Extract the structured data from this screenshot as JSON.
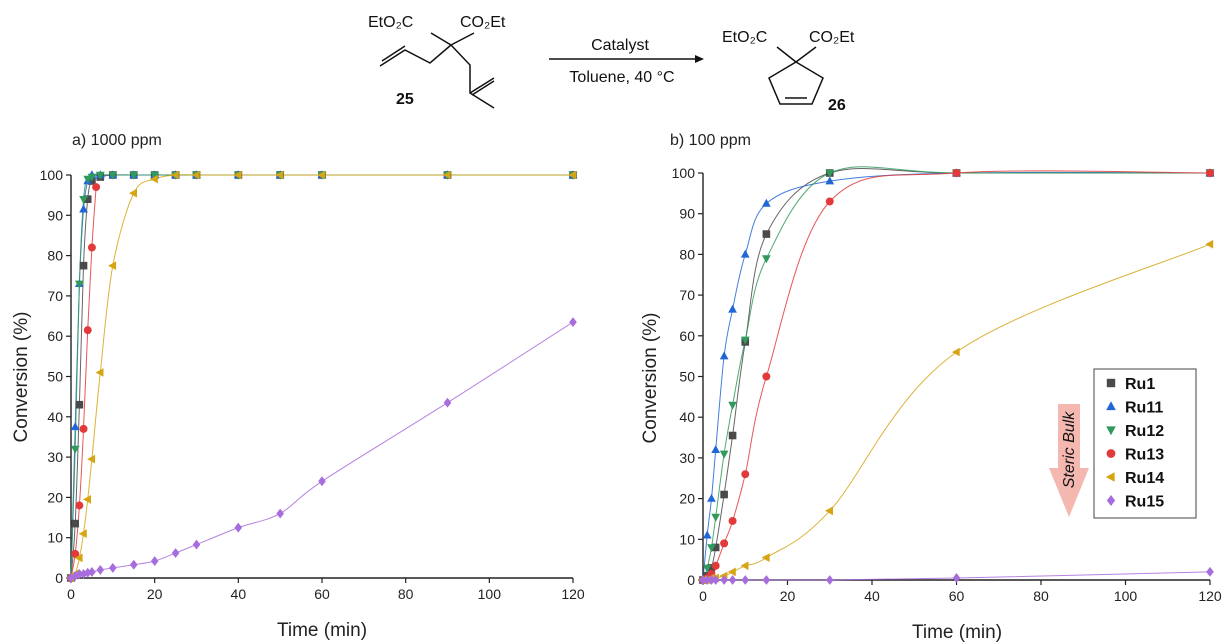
{
  "scheme": {
    "reactant_left_group": "EtO₂C",
    "reactant_right_group": "CO₂Et",
    "reactant_label": "25",
    "arrow_top": "Catalyst",
    "arrow_bottom": "Toluene, 40 °C",
    "product_left_group": "EtO₂C",
    "product_right_group": "CO₂Et",
    "product_label": "26"
  },
  "legend": {
    "arrow_text": "Steric Bulk",
    "arrow_color": "#f4b8b0"
  },
  "chart_data": [
    {
      "type": "scatter",
      "title": "a) 1000 ppm",
      "xlabel": "Time (min)",
      "ylabel": "Conversion (%)",
      "xlim": [
        0,
        120
      ],
      "ylim": [
        0,
        100
      ],
      "xticks": [
        0,
        20,
        40,
        60,
        80,
        100,
        120
      ],
      "yticks": [
        0,
        10,
        20,
        30,
        40,
        50,
        60,
        70,
        80,
        90,
        100
      ],
      "fit_lines": true,
      "series": [
        {
          "name": "Ru1",
          "marker": "square",
          "color": "#4a4a4a",
          "x": [
            0,
            1,
            2,
            3,
            4,
            5,
            7,
            10,
            15,
            20,
            25,
            30,
            40,
            50,
            60,
            90,
            120
          ],
          "y": [
            0,
            13.5,
            43,
            77.5,
            94,
            98.5,
            99.5,
            100,
            100,
            100,
            100,
            100,
            100,
            100,
            100,
            100,
            100
          ]
        },
        {
          "name": "Ru11",
          "marker": "triangle-up",
          "color": "#2166d6",
          "x": [
            0,
            1,
            2,
            3,
            4,
            5,
            7,
            10,
            15,
            20,
            25,
            30,
            40,
            50,
            60,
            90,
            120
          ],
          "y": [
            0,
            37.5,
            73,
            91.5,
            98.5,
            100,
            100,
            100,
            100,
            100,
            100,
            100,
            100,
            100,
            100,
            100,
            100
          ]
        },
        {
          "name": "Ru12",
          "marker": "triangle-down",
          "color": "#2f9a5c",
          "x": [
            0,
            1,
            2,
            3,
            4,
            5,
            7,
            10,
            15,
            20,
            25,
            30,
            40,
            50,
            60,
            90,
            120
          ],
          "y": [
            0,
            32,
            73,
            94,
            99,
            99.5,
            100,
            100,
            100,
            100,
            100,
            100,
            100,
            100,
            100,
            100,
            100
          ]
        },
        {
          "name": "Ru13",
          "marker": "circle",
          "color": "#e23a3a",
          "x": [
            0,
            1,
            2,
            3,
            4,
            5,
            6
          ],
          "y": [
            0,
            6,
            18,
            37,
            61.5,
            82,
            97
          ]
        },
        {
          "name": "Ru14",
          "marker": "triangle-left",
          "color": "#d6a514",
          "x": [
            0,
            1,
            2,
            3,
            4,
            5,
            7,
            10,
            15,
            20,
            25,
            30,
            40,
            50,
            60,
            90,
            120
          ],
          "y": [
            0,
            1,
            5,
            11,
            19.5,
            29.5,
            51,
            77.5,
            95.5,
            99,
            100,
            100,
            100,
            100,
            100,
            100,
            100
          ]
        },
        {
          "name": "Ru15",
          "marker": "diamond",
          "color": "#a86ddc",
          "x": [
            0,
            1,
            2,
            3,
            4,
            5,
            7,
            10,
            15,
            20,
            25,
            30,
            40,
            50,
            60,
            90,
            120
          ],
          "y": [
            0,
            0.5,
            1,
            1,
            1.3,
            1.5,
            2,
            2.5,
            3.3,
            4.2,
            6.2,
            8.3,
            12.5,
            16,
            24,
            43.5,
            63.5
          ]
        }
      ]
    },
    {
      "type": "scatter",
      "title": "b) 100 ppm",
      "xlabel": "Time (min)",
      "ylabel": "Conversion (%)",
      "xlim": [
        0,
        120
      ],
      "ylim": [
        0,
        100
      ],
      "xticks": [
        0,
        20,
        40,
        60,
        80,
        100,
        120
      ],
      "yticks": [
        0,
        10,
        20,
        30,
        40,
        50,
        60,
        70,
        80,
        90,
        100
      ],
      "fit_lines": true,
      "legend_position": "right",
      "series": [
        {
          "name": "Ru1",
          "marker": "square",
          "color": "#4a4a4a",
          "x": [
            0,
            1,
            2,
            3,
            5,
            7,
            10,
            15,
            30,
            60,
            120
          ],
          "y": [
            0,
            1,
            3,
            8,
            21,
            35.5,
            58.5,
            85,
            100,
            100,
            100
          ]
        },
        {
          "name": "Ru11",
          "marker": "triangle-up",
          "color": "#2166d6",
          "x": [
            0,
            1,
            2,
            3,
            5,
            7,
            10,
            15,
            30,
            60,
            120
          ],
          "y": [
            0,
            11,
            20,
            32,
            55,
            66.5,
            80,
            92.5,
            98,
            100,
            100
          ]
        },
        {
          "name": "Ru12",
          "marker": "triangle-down",
          "color": "#2f9a5c",
          "x": [
            0,
            1,
            2,
            3,
            5,
            7,
            10,
            15,
            30,
            60,
            120
          ],
          "y": [
            0,
            3,
            8,
            15.5,
            31,
            43,
            59,
            79,
            100,
            100,
            100
          ]
        },
        {
          "name": "Ru13",
          "marker": "circle",
          "color": "#e23a3a",
          "x": [
            0,
            1,
            2,
            3,
            5,
            7,
            10,
            15,
            30,
            60,
            120
          ],
          "y": [
            0,
            0.5,
            1.5,
            3.5,
            9,
            14.5,
            26,
            50,
            93,
            100,
            100
          ]
        },
        {
          "name": "Ru14",
          "marker": "triangle-left",
          "color": "#d6a514",
          "x": [
            0,
            1,
            2,
            3,
            5,
            7,
            10,
            15,
            30,
            60,
            120
          ],
          "y": [
            0,
            0,
            0.5,
            0.5,
            1,
            2,
            3.5,
            5.5,
            17,
            56,
            82.5
          ]
        },
        {
          "name": "Ru15",
          "marker": "diamond",
          "color": "#a86ddc",
          "x": [
            0,
            1,
            2,
            3,
            5,
            7,
            10,
            15,
            30,
            60,
            120
          ],
          "y": [
            0,
            0,
            0,
            0,
            0,
            0,
            0,
            0,
            0,
            0.5,
            2
          ]
        }
      ]
    }
  ]
}
